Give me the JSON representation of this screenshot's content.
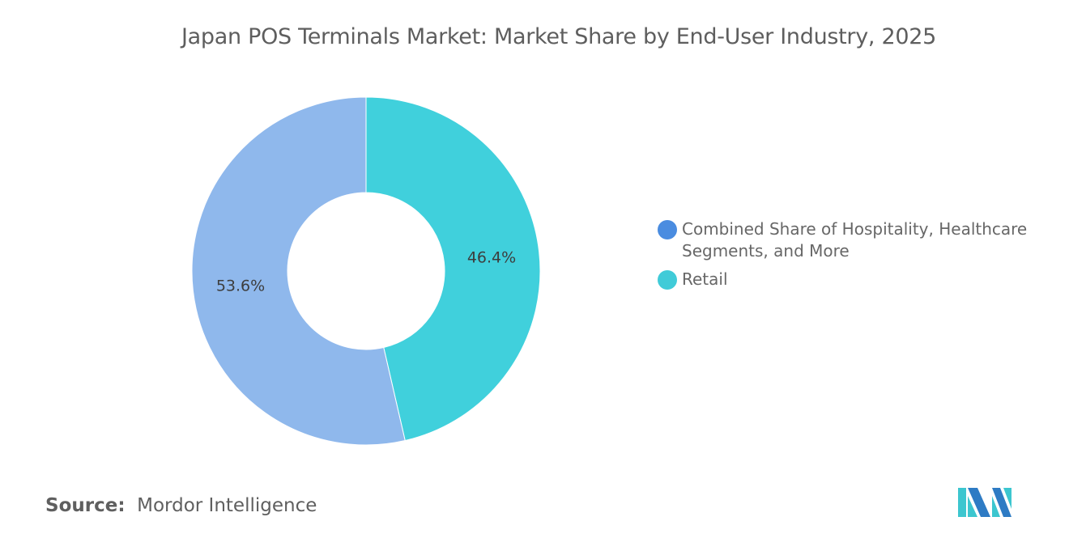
{
  "chart_data": {
    "type": "pie",
    "variant": "donut",
    "title": "Japan POS Terminals Market: Market Share by End-User Industry, 2025",
    "slices": [
      {
        "name": "Retail",
        "value": 46.4,
        "label": "46.4%",
        "color": "#40D0DC",
        "legend_color": "#40CBD8"
      },
      {
        "name": "Combined Share of Hospitality, Healthcare Segments, and More",
        "value": 53.6,
        "label": "53.6%",
        "color": "#8FB8EC",
        "legend_color": "#4A8CE0"
      }
    ],
    "legend_order": [
      1,
      0
    ],
    "legend_position": "right"
  },
  "source": {
    "label": "Source:",
    "value": "Mordor Intelligence"
  },
  "logo": {
    "name": "Mordor Intelligence logo",
    "colors": [
      "#2E7BC4",
      "#3CC6CF"
    ]
  }
}
